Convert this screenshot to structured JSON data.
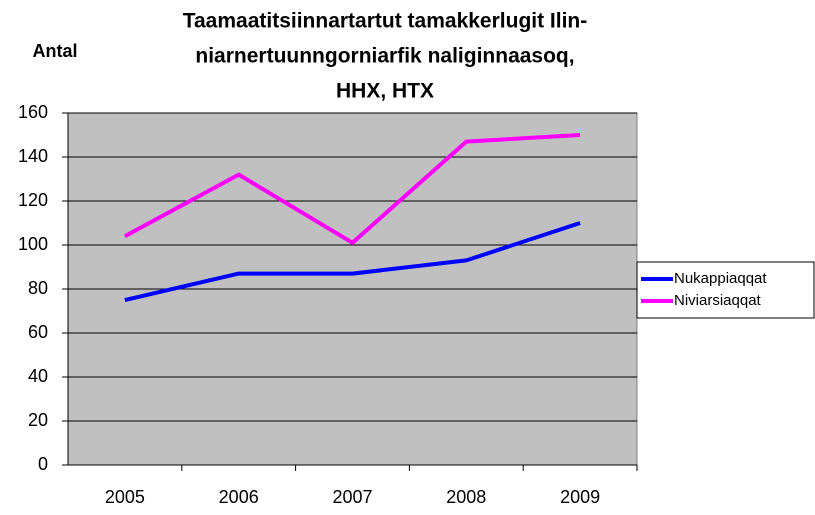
{
  "chart_data": {
    "type": "line",
    "title": [
      "Taamaatitsiinnartartut tamakkerlugit Ilin-",
      "niarnertuunngorniarfik naliginnaasoq,",
      "HHX, HTX"
    ],
    "ylabel": "Antal",
    "categories": [
      "2005",
      "2006",
      "2007",
      "2008",
      "2009"
    ],
    "series": [
      {
        "name": "Nukappiaqqat",
        "color": "#0000ff",
        "values": [
          75,
          87,
          87,
          93,
          110
        ]
      },
      {
        "name": "Niviarsiaqqat",
        "color": "#ff00ff",
        "values": [
          104,
          132,
          101,
          147,
          150
        ]
      }
    ],
    "ylim": [
      0,
      160
    ],
    "yticks": [
      0,
      20,
      40,
      60,
      80,
      100,
      120,
      140,
      160
    ],
    "grid": true,
    "legend": "right"
  }
}
